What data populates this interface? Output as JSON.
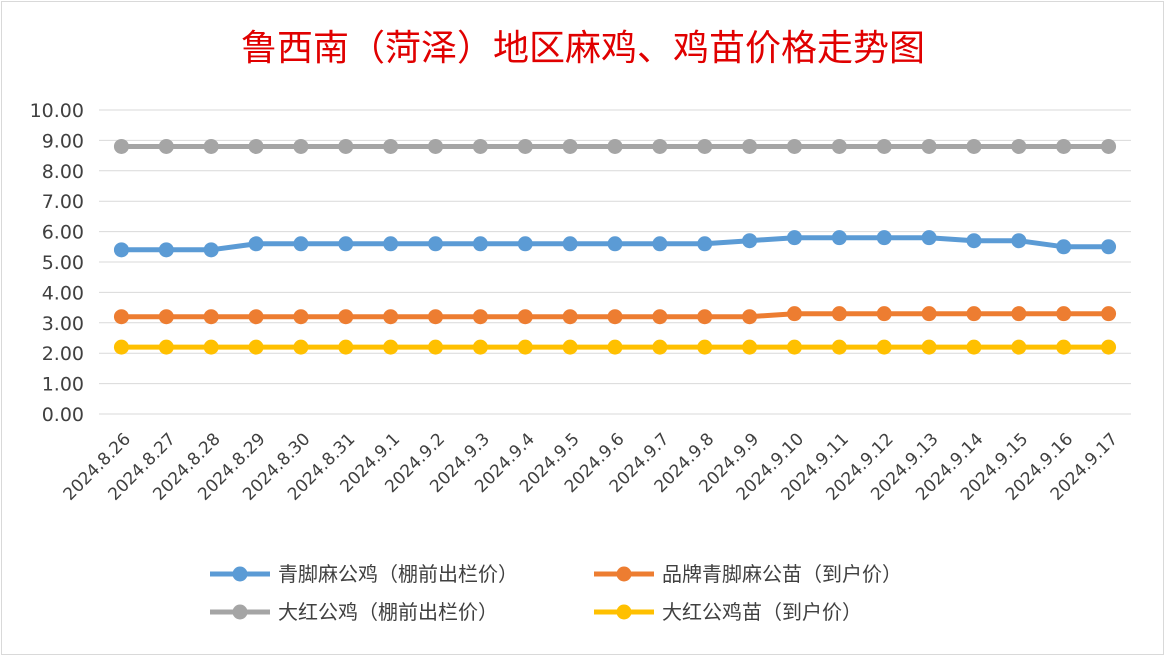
{
  "chart_data": {
    "type": "line",
    "title": "鲁西南（菏泽）地区麻鸡、鸡苗价格走势图",
    "xlabel": "",
    "ylabel": "",
    "ylim": [
      0,
      10
    ],
    "ytick_labels": [
      "0.00",
      "1.00",
      "2.00",
      "3.00",
      "4.00",
      "5.00",
      "6.00",
      "7.00",
      "8.00",
      "9.00",
      "10.00"
    ],
    "grid": true,
    "legend_position": "bottom",
    "categories": [
      "2024.8.26",
      "2024.8.27",
      "2024.8.28",
      "2024.8.29",
      "2024.8.30",
      "2024.8.31",
      "2024.9.1",
      "2024.9.2",
      "2024.9.3",
      "2024.9.4",
      "2024.9.5",
      "2024.9.6",
      "2024.9.7",
      "2024.9.8",
      "2024.9.9",
      "2024.9.10",
      "2024.9.11",
      "2024.9.12",
      "2024.9.13",
      "2024.9.14",
      "2024.9.15",
      "2024.9.16",
      "2024.9.17"
    ],
    "series": [
      {
        "name": "青脚麻公鸡（棚前出栏价）",
        "color": "#5b9bd5",
        "values": [
          5.4,
          5.4,
          5.4,
          5.6,
          5.6,
          5.6,
          5.6,
          5.6,
          5.6,
          5.6,
          5.6,
          5.6,
          5.6,
          5.6,
          5.7,
          5.8,
          5.8,
          5.8,
          5.8,
          5.7,
          5.7,
          5.5,
          5.5
        ]
      },
      {
        "name": "品牌青脚麻公苗（到户价）",
        "color": "#ed7d31",
        "values": [
          3.2,
          3.2,
          3.2,
          3.2,
          3.2,
          3.2,
          3.2,
          3.2,
          3.2,
          3.2,
          3.2,
          3.2,
          3.2,
          3.2,
          3.2,
          3.3,
          3.3,
          3.3,
          3.3,
          3.3,
          3.3,
          3.3,
          3.3
        ]
      },
      {
        "name": "大红公鸡（棚前出栏价）",
        "color": "#a5a5a5",
        "values": [
          8.8,
          8.8,
          8.8,
          8.8,
          8.8,
          8.8,
          8.8,
          8.8,
          8.8,
          8.8,
          8.8,
          8.8,
          8.8,
          8.8,
          8.8,
          8.8,
          8.8,
          8.8,
          8.8,
          8.8,
          8.8,
          8.8,
          8.8
        ]
      },
      {
        "name": "大红公鸡苗（到户价）",
        "color": "#ffc000",
        "values": [
          2.2,
          2.2,
          2.2,
          2.2,
          2.2,
          2.2,
          2.2,
          2.2,
          2.2,
          2.2,
          2.2,
          2.2,
          2.2,
          2.2,
          2.2,
          2.2,
          2.2,
          2.2,
          2.2,
          2.2,
          2.2,
          2.2,
          2.2
        ]
      }
    ]
  }
}
